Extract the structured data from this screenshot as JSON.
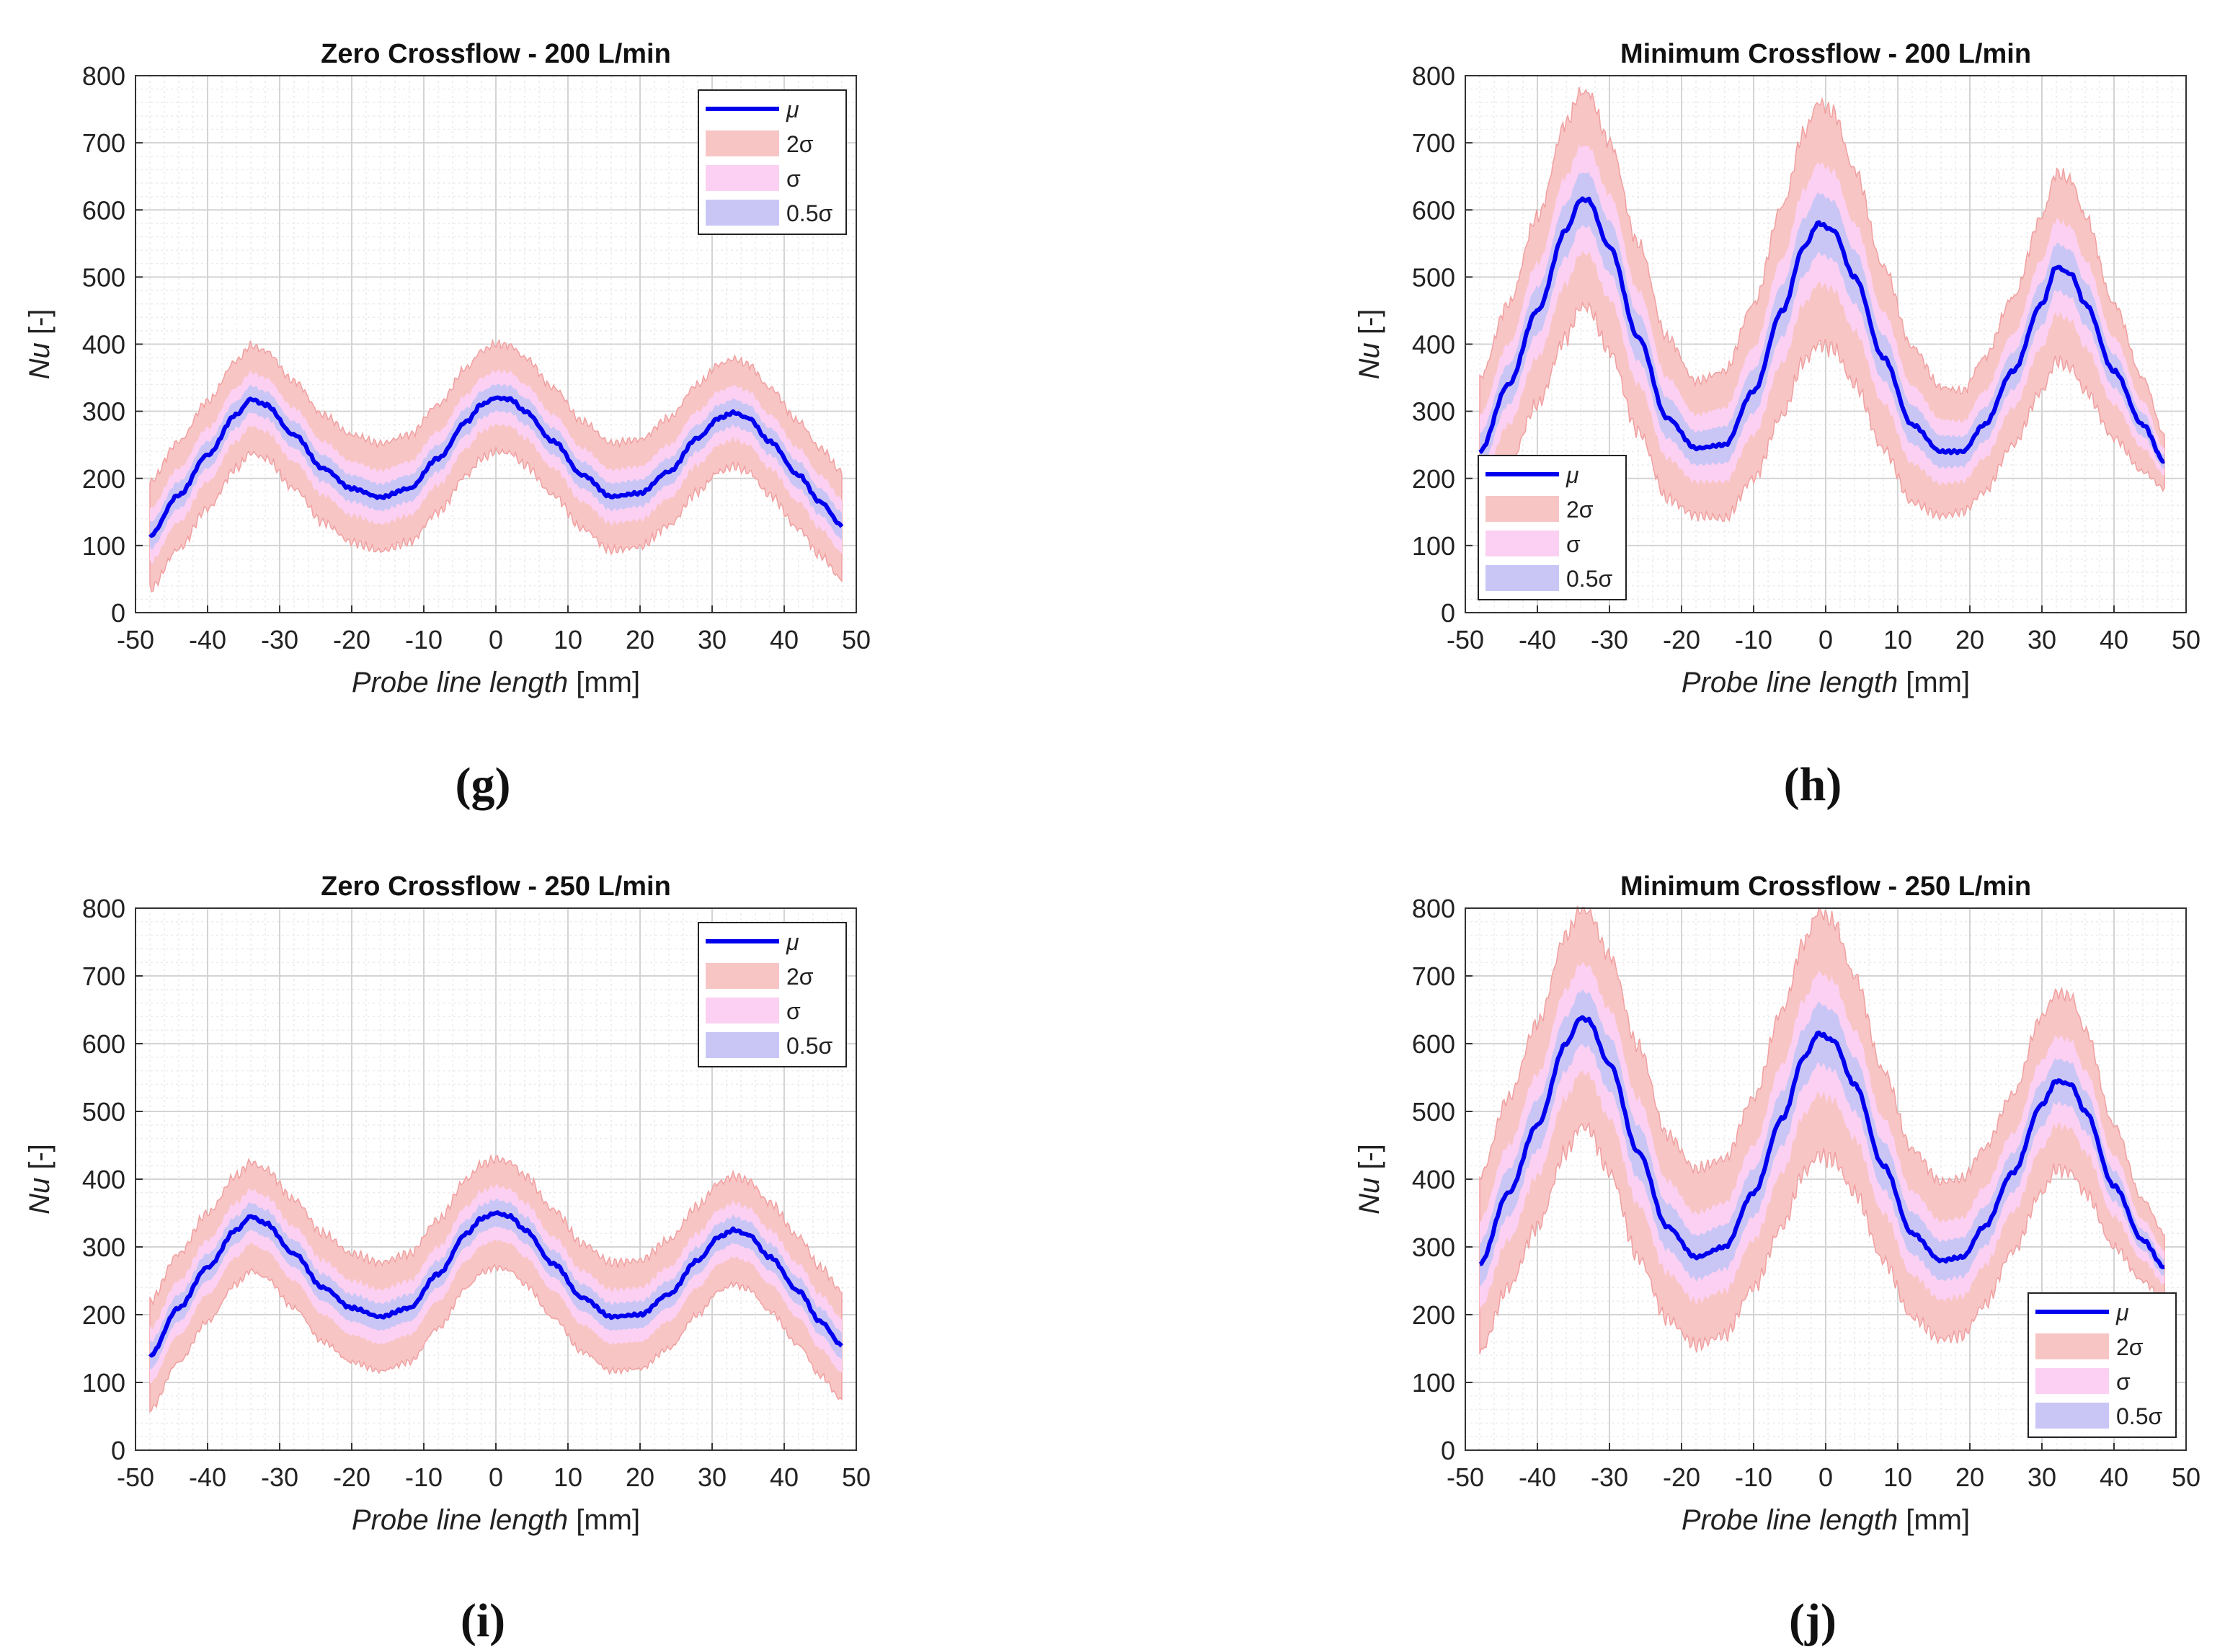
{
  "figure": {
    "x_label_main": "Probe line length",
    "x_label_unit": "[mm]",
    "y_label_main": "Nu",
    "y_label_unit": "[-]"
  },
  "legend_labels": {
    "mu": "μ",
    "two_sigma": "2σ",
    "sigma": "σ",
    "half_sigma": "0.5σ"
  },
  "colors": {
    "mean_line": "#0000ee",
    "band_2sigma": "#f8c5c5",
    "band_2sigma_edge": "#f0a0a0",
    "band_sigma": "#fcd0f2",
    "band_halfsigma": "#c9c6f6",
    "grid_major": "#d4d4d4",
    "grid_minor": "#ececec",
    "axis": "#333333",
    "text": "#222222"
  },
  "chart_data": [
    {
      "panel": "(g)",
      "type": "line",
      "title": "Zero Crossflow - 200 L/min",
      "xlabel": "Probe line length [mm]",
      "ylabel": "Nu [-]",
      "xlim": [
        -50,
        50
      ],
      "ylim": [
        0,
        800
      ],
      "xticks": [
        -50,
        -40,
        -30,
        -20,
        -10,
        0,
        10,
        20,
        30,
        40,
        50
      ],
      "yticks": [
        0,
        100,
        200,
        300,
        400,
        500,
        600,
        700,
        800
      ],
      "grid": true,
      "legend_position": "top-right",
      "series": [
        {
          "name": "μ",
          "x": [
            -48,
            -44,
            -40,
            -36,
            -34,
            -32,
            -28,
            -24,
            -20,
            -16,
            -12,
            -8,
            -4,
            -2,
            0,
            2,
            4,
            8,
            12,
            16,
            20,
            24,
            28,
            31,
            33,
            35,
            38,
            42,
            45,
            48
          ],
          "values": [
            115,
            175,
            235,
            295,
            318,
            310,
            265,
            215,
            185,
            172,
            185,
            230,
            285,
            310,
            320,
            318,
            300,
            255,
            205,
            173,
            178,
            210,
            260,
            290,
            298,
            290,
            255,
            205,
            165,
            130
          ]
        },
        {
          "name": "σ",
          "values": [
            40,
            40,
            40,
            40,
            40,
            40,
            40,
            40,
            40,
            40,
            40,
            40,
            40,
            40,
            40,
            40,
            40,
            40,
            40,
            40,
            40,
            40,
            40,
            40,
            40,
            40,
            40,
            40,
            40,
            40
          ]
        }
      ]
    },
    {
      "panel": "(h)",
      "type": "line",
      "title": "Minimum Crossflow - 200 L/min",
      "xlabel": "Probe line length [mm]",
      "ylabel": "Nu [-]",
      "xlim": [
        -50,
        50
      ],
      "ylim": [
        0,
        800
      ],
      "xticks": [
        -50,
        -40,
        -30,
        -20,
        -10,
        0,
        10,
        20,
        30,
        40,
        50
      ],
      "yticks": [
        0,
        100,
        200,
        300,
        400,
        500,
        600,
        700,
        800
      ],
      "grid": true,
      "legend_position": "bottom-left",
      "series": [
        {
          "name": "μ",
          "x": [
            -48,
            -44,
            -40,
            -36,
            -34,
            -33,
            -30,
            -26,
            -22,
            -18,
            -14,
            -10,
            -6,
            -3,
            -1,
            1,
            4,
            8,
            12,
            16,
            19,
            22,
            26,
            30,
            32,
            34,
            36,
            40,
            44,
            47
          ],
          "values": [
            240,
            340,
            450,
            570,
            615,
            615,
            545,
            410,
            290,
            245,
            250,
            330,
            450,
            545,
            580,
            570,
            500,
            380,
            280,
            240,
            240,
            280,
            360,
            460,
            515,
            505,
            460,
            360,
            280,
            225
          ]
        },
        {
          "name": "σ",
          "values": [
            55,
            60,
            70,
            80,
            80,
            80,
            78,
            70,
            60,
            50,
            55,
            65,
            78,
            85,
            90,
            88,
            80,
            68,
            58,
            48,
            45,
            50,
            55,
            65,
            70,
            70,
            65,
            50,
            35,
            20
          ]
        }
      ]
    },
    {
      "panel": "(i)",
      "type": "line",
      "title": "Zero Crossflow - 250 L/min",
      "xlabel": "Probe line length [mm]",
      "ylabel": "Nu [-]",
      "xlim": [
        -50,
        50
      ],
      "ylim": [
        0,
        800
      ],
      "xticks": [
        -50,
        -40,
        -30,
        -20,
        -10,
        0,
        10,
        20,
        30,
        40,
        50
      ],
      "yticks": [
        0,
        100,
        200,
        300,
        400,
        500,
        600,
        700,
        800
      ],
      "grid": true,
      "legend_position": "top-right",
      "series": [
        {
          "name": "μ",
          "x": [
            -48,
            -44,
            -40,
            -36,
            -34,
            -32,
            -28,
            -24,
            -20,
            -16,
            -12,
            -8,
            -4,
            -2,
            0,
            2,
            4,
            8,
            12,
            16,
            20,
            24,
            28,
            31,
            33,
            35,
            38,
            42,
            45,
            48
          ],
          "values": [
            140,
            210,
            270,
            325,
            345,
            335,
            290,
            240,
            210,
            197,
            210,
            260,
            320,
            342,
            350,
            345,
            325,
            275,
            225,
            197,
            200,
            230,
            280,
            315,
            325,
            318,
            285,
            235,
            190,
            155
          ]
        },
        {
          "name": "σ",
          "values": [
            40,
            40,
            40,
            40,
            40,
            40,
            40,
            40,
            40,
            40,
            40,
            40,
            40,
            40,
            40,
            40,
            40,
            40,
            40,
            40,
            40,
            40,
            40,
            40,
            40,
            40,
            40,
            40,
            40,
            40
          ]
        }
      ]
    },
    {
      "panel": "(j)",
      "type": "line",
      "title": "Minimum Crossflow - 250 L/min",
      "xlabel": "Probe line length [mm]",
      "ylabel": "Nu [-]",
      "xlim": [
        -50,
        50
      ],
      "ylim": [
        0,
        800
      ],
      "xticks": [
        -50,
        -40,
        -30,
        -20,
        -10,
        0,
        10,
        20,
        30,
        40,
        50
      ],
      "yticks": [
        0,
        100,
        200,
        300,
        400,
        500,
        600,
        700,
        800
      ],
      "grid": true,
      "legend_position": "bottom-right",
      "series": [
        {
          "name": "μ",
          "x": [
            -48,
            -44,
            -40,
            -36,
            -34,
            -33,
            -30,
            -26,
            -22,
            -18,
            -14,
            -10,
            -6,
            -3,
            -1,
            1,
            4,
            8,
            12,
            16,
            19,
            22,
            26,
            30,
            32,
            34,
            36,
            40,
            44,
            47
          ],
          "values": [
            275,
            380,
            480,
            600,
            638,
            635,
            570,
            440,
            330,
            285,
            300,
            380,
            490,
            580,
            615,
            605,
            540,
            420,
            320,
            280,
            285,
            330,
            410,
            510,
            545,
            540,
            500,
            390,
            310,
            270
          ]
        },
        {
          "name": "σ",
          "values": [
            65,
            70,
            75,
            80,
            80,
            80,
            80,
            78,
            68,
            65,
            65,
            70,
            80,
            85,
            90,
            88,
            80,
            70,
            62,
            58,
            58,
            58,
            58,
            65,
            65,
            65,
            60,
            45,
            30,
            25
          ]
        }
      ]
    }
  ]
}
